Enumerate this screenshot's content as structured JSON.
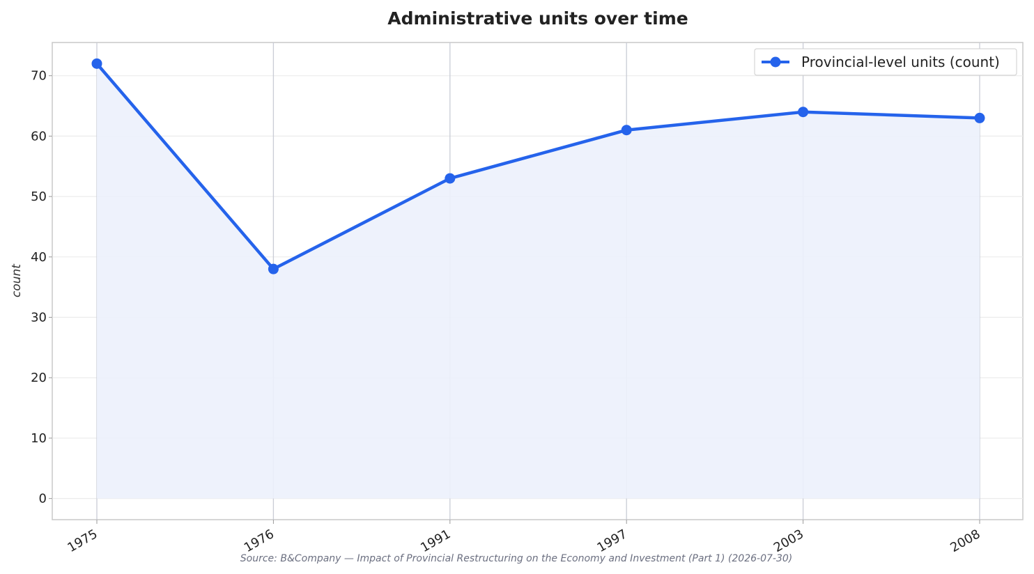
{
  "chart_data": {
    "type": "line",
    "title": "Administrative units over time",
    "ylabel": "count",
    "xlabel": "",
    "categories": [
      "1975",
      "1976",
      "1991",
      "1997",
      "2003",
      "2008"
    ],
    "series": [
      {
        "name": "Provincial-level units (count)",
        "values": [
          72,
          38,
          53,
          61,
          64,
          63
        ]
      }
    ],
    "ylim": [
      -3.5,
      75.5
    ],
    "yticks": [
      0,
      10,
      20,
      30,
      40,
      50,
      60,
      70
    ],
    "grid": true,
    "area_fill": true,
    "legend_position": "top-right",
    "line_color": "#2563eb",
    "fill_color": "#ecf1fc",
    "source": "Source: B&Company — Impact of Provincial Restructuring on the Economy and Investment (Part 1) (2026-07-30)"
  }
}
